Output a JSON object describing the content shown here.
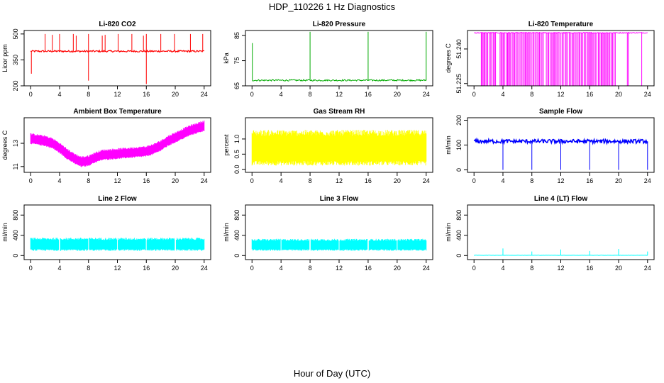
{
  "figure_title": "HDP_110226  1 Hz Diagnostics",
  "global_xlabel": "Hour of Day (UTC)",
  "chart_data": [
    {
      "type": "line",
      "title": "Li-820 CO2",
      "ylabel": "Licor ppm",
      "color": "#ff0000",
      "xlim": [
        0,
        24
      ],
      "ylim": [
        200,
        520
      ],
      "xticks": [
        0,
        4,
        8,
        12,
        16,
        20,
        24
      ],
      "yticks": [
        200,
        350,
        500
      ],
      "baseline": 400,
      "noise": 5,
      "series": [
        {
          "name": "spikes_up",
          "x": [
            2.0,
            3.0,
            4.0,
            5.9,
            6.3,
            8.0,
            9.9,
            10.3,
            12.1,
            14.0,
            15.6,
            16.0,
            18.0,
            19.9,
            22.1,
            23.8
          ],
          "values": [
            500,
            495,
            500,
            500,
            490,
            500,
            490,
            495,
            500,
            500,
            490,
            500,
            500,
            500,
            500,
            500
          ]
        },
        {
          "name": "spikes_down",
          "x": [
            0.1,
            8.0,
            16.0
          ],
          "values": [
            270,
            230,
            210
          ]
        }
      ]
    },
    {
      "type": "line",
      "title": "Li-820 Pressure",
      "ylabel": "kPa",
      "color": "#00aa00",
      "xlim": [
        0,
        24
      ],
      "ylim": [
        65,
        87
      ],
      "xticks": [
        0,
        4,
        8,
        12,
        16,
        20,
        24
      ],
      "yticks": [
        65,
        75,
        85
      ],
      "baseline": 67.2,
      "noise": 0.3,
      "series": [
        {
          "name": "spikes_up",
          "x": [
            0.05,
            8.0,
            16.0,
            24.0
          ],
          "values": [
            82,
            86.5,
            86.5,
            86.5
          ]
        }
      ]
    },
    {
      "type": "line",
      "title": "Li-820 Temperature",
      "ylabel": "degrees C",
      "color": "#ff00ff",
      "xlim": [
        0,
        24
      ],
      "ylim": [
        51.224,
        51.248
      ],
      "xticks": [
        0,
        4,
        8,
        12,
        16,
        20,
        24
      ],
      "yticks": [
        51.225,
        51.24
      ],
      "ytick_labels": [
        "51.225",
        "51.240"
      ],
      "baseline": 51.247,
      "drop_to": 51.224,
      "drop_spans": [
        [
          1.0,
          3.0
        ],
        [
          3.6,
          9.6
        ],
        [
          10.0,
          12.4
        ],
        [
          12.6,
          19.6
        ],
        [
          21.2,
          21.4
        ],
        [
          23.2,
          23.3
        ]
      ]
    },
    {
      "type": "line",
      "title": "Ambient Box Temperature",
      "ylabel": "degrees C",
      "color": "#ff00ff",
      "xlim": [
        0,
        24
      ],
      "ylim": [
        10.5,
        15.2
      ],
      "xticks": [
        0,
        4,
        8,
        12,
        16,
        20,
        24
      ],
      "yticks": [
        11,
        13
      ],
      "band": 0.4,
      "series": [
        {
          "name": "temperature",
          "x": [
            0,
            2,
            3,
            4,
            5,
            6,
            7,
            8,
            9,
            10,
            12,
            14,
            16,
            17,
            18,
            19,
            20,
            21,
            22,
            23,
            24
          ],
          "values": [
            13.4,
            13.2,
            13.0,
            12.6,
            12.1,
            11.7,
            11.4,
            11.5,
            11.8,
            12.0,
            12.1,
            12.2,
            12.3,
            12.5,
            12.8,
            13.2,
            13.5,
            13.8,
            14.1,
            14.3,
            14.5
          ]
        }
      ]
    },
    {
      "type": "line",
      "title": "Gas Stream RH",
      "ylabel": "percent",
      "color": "#ffff00",
      "xlim": [
        0,
        24
      ],
      "ylim": [
        -0.1,
        1.7
      ],
      "xticks": [
        0,
        4,
        8,
        12,
        16,
        20,
        24
      ],
      "yticks": [
        0.0,
        0.5,
        1.0
      ],
      "ytick_labels": [
        "0.0",
        "0.5",
        "1.0"
      ],
      "band_low": 0.2,
      "band_high": 1.2,
      "noise": 0.3
    },
    {
      "type": "line",
      "title": "Sample Flow",
      "ylabel": "ml/min",
      "color": "#0000ff",
      "xlim": [
        0,
        24
      ],
      "ylim": [
        -10,
        210
      ],
      "xticks": [
        0,
        4,
        8,
        12,
        16,
        20,
        24
      ],
      "yticks": [
        0,
        100,
        200
      ],
      "baseline": 115,
      "noise": 8,
      "series": [
        {
          "name": "dropouts",
          "x": [
            4.0,
            8.0,
            12.0,
            16.0,
            20.0,
            24.0
          ],
          "values": [
            0,
            0,
            0,
            0,
            0,
            0
          ]
        }
      ]
    },
    {
      "type": "line",
      "title": "Line 2 Flow",
      "ylabel": "ml/min",
      "color": "#00ffff",
      "xlim": [
        0,
        24
      ],
      "ylim": [
        -80,
        1000
      ],
      "xticks": [
        0,
        4,
        8,
        12,
        16,
        20,
        24
      ],
      "yticks": [
        0,
        400,
        800
      ],
      "band_low": 110,
      "band_high": 330,
      "gaps": [
        4.0,
        8.0,
        12.0,
        16.0,
        20.0
      ]
    },
    {
      "type": "line",
      "title": "Line 3 Flow",
      "ylabel": "ml/min",
      "color": "#00ffff",
      "xlim": [
        0,
        24
      ],
      "ylim": [
        -80,
        1000
      ],
      "xticks": [
        0,
        4,
        8,
        12,
        16,
        20,
        24
      ],
      "yticks": [
        0,
        400,
        800
      ],
      "band_low": 110,
      "band_high": 310,
      "gaps": [
        4.0,
        8.0,
        12.0,
        16.0,
        20.0
      ]
    },
    {
      "type": "line",
      "title": "Line 4 (LT) Flow",
      "ylabel": "ml/min",
      "color": "#00ffff",
      "xlim": [
        0,
        24
      ],
      "ylim": [
        -80,
        1000
      ],
      "xticks": [
        0,
        4,
        8,
        12,
        16,
        20,
        24
      ],
      "yticks": [
        0,
        400,
        800
      ],
      "baseline": 5,
      "series": [
        {
          "name": "spikes",
          "x": [
            4.0,
            8.0,
            12.0,
            16.0,
            20.0,
            24.0
          ],
          "values": [
            140,
            80,
            120,
            90,
            130,
            80
          ]
        }
      ]
    }
  ]
}
